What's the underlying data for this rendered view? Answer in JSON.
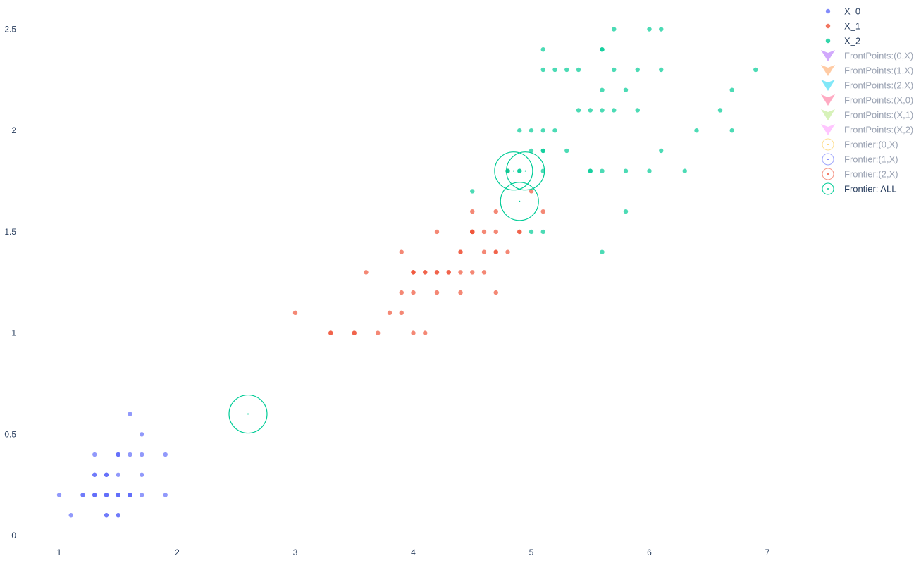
{
  "chart_data": {
    "type": "scatter",
    "title": "",
    "xlabel": "",
    "ylabel": "",
    "xlim": [
      0.6,
      7.6
    ],
    "ylim": [
      -0.05,
      2.6
    ],
    "grid": false,
    "legend_position": "top-right",
    "x_ticks": [
      1,
      2,
      3,
      4,
      5,
      6,
      7
    ],
    "x_tick_labels": [
      "1",
      "2",
      "3",
      "4",
      "5",
      "6",
      "7"
    ],
    "y_ticks": [
      0,
      0.5,
      1,
      1.5,
      2,
      2.5
    ],
    "y_tick_labels": [
      "0",
      "0.5",
      "1",
      "1.5",
      "2",
      "2.5"
    ],
    "series": [
      {
        "name": "X_0",
        "kind": "points",
        "color": "#636efa",
        "points": [
          [
            1.4,
            0.2
          ],
          [
            1.4,
            0.2
          ],
          [
            1.3,
            0.2
          ],
          [
            1.5,
            0.2
          ],
          [
            1.4,
            0.2
          ],
          [
            1.7,
            0.4
          ],
          [
            1.4,
            0.3
          ],
          [
            1.5,
            0.2
          ],
          [
            1.4,
            0.2
          ],
          [
            1.5,
            0.1
          ],
          [
            1.5,
            0.2
          ],
          [
            1.6,
            0.2
          ],
          [
            1.4,
            0.1
          ],
          [
            1.1,
            0.1
          ],
          [
            1.2,
            0.2
          ],
          [
            1.5,
            0.4
          ],
          [
            1.3,
            0.4
          ],
          [
            1.4,
            0.3
          ],
          [
            1.7,
            0.3
          ],
          [
            1.5,
            0.3
          ],
          [
            1.7,
            0.2
          ],
          [
            1.5,
            0.4
          ],
          [
            1.0,
            0.2
          ],
          [
            1.7,
            0.5
          ],
          [
            1.9,
            0.2
          ],
          [
            1.6,
            0.2
          ],
          [
            1.6,
            0.4
          ],
          [
            1.5,
            0.2
          ],
          [
            1.4,
            0.2
          ],
          [
            1.6,
            0.2
          ],
          [
            1.6,
            0.2
          ],
          [
            1.5,
            0.4
          ],
          [
            1.5,
            0.1
          ],
          [
            1.4,
            0.2
          ],
          [
            1.5,
            0.2
          ],
          [
            1.2,
            0.2
          ],
          [
            1.3,
            0.2
          ],
          [
            1.4,
            0.1
          ],
          [
            1.3,
            0.2
          ],
          [
            1.5,
            0.2
          ],
          [
            1.3,
            0.3
          ],
          [
            1.3,
            0.3
          ],
          [
            1.3,
            0.2
          ],
          [
            1.6,
            0.6
          ],
          [
            1.9,
            0.4
          ],
          [
            1.4,
            0.3
          ],
          [
            1.6,
            0.2
          ],
          [
            1.4,
            0.2
          ],
          [
            1.5,
            0.2
          ],
          [
            1.4,
            0.2
          ]
        ]
      },
      {
        "name": "X_1",
        "kind": "points",
        "color": "#ef553b",
        "points": [
          [
            4.7,
            1.4
          ],
          [
            4.5,
            1.5
          ],
          [
            4.9,
            1.5
          ],
          [
            4.0,
            1.3
          ],
          [
            4.6,
            1.5
          ],
          [
            4.5,
            1.3
          ],
          [
            4.7,
            1.6
          ],
          [
            3.3,
            1.0
          ],
          [
            4.6,
            1.3
          ],
          [
            3.9,
            1.4
          ],
          [
            3.5,
            1.0
          ],
          [
            4.2,
            1.5
          ],
          [
            4.0,
            1.0
          ],
          [
            4.7,
            1.4
          ],
          [
            3.6,
            1.3
          ],
          [
            4.4,
            1.4
          ],
          [
            4.5,
            1.5
          ],
          [
            4.1,
            1.0
          ],
          [
            4.5,
            1.5
          ],
          [
            3.9,
            1.1
          ],
          [
            4.8,
            1.8
          ],
          [
            4.0,
            1.3
          ],
          [
            4.9,
            1.5
          ],
          [
            4.7,
            1.2
          ],
          [
            4.3,
            1.3
          ],
          [
            4.4,
            1.4
          ],
          [
            4.8,
            1.4
          ],
          [
            5.0,
            1.7
          ],
          [
            4.5,
            1.5
          ],
          [
            3.5,
            1.0
          ],
          [
            3.8,
            1.1
          ],
          [
            3.7,
            1.0
          ],
          [
            3.9,
            1.2
          ],
          [
            5.1,
            1.6
          ],
          [
            4.5,
            1.5
          ],
          [
            4.5,
            1.6
          ],
          [
            4.7,
            1.5
          ],
          [
            4.4,
            1.3
          ],
          [
            4.1,
            1.3
          ],
          [
            4.0,
            1.3
          ],
          [
            4.4,
            1.2
          ],
          [
            4.6,
            1.4
          ],
          [
            4.0,
            1.2
          ],
          [
            3.3,
            1.0
          ],
          [
            4.2,
            1.3
          ],
          [
            4.2,
            1.2
          ],
          [
            4.2,
            1.3
          ],
          [
            4.3,
            1.3
          ],
          [
            3.0,
            1.1
          ],
          [
            4.1,
            1.3
          ]
        ]
      },
      {
        "name": "X_2",
        "kind": "points",
        "color": "#00cc96",
        "points": [
          [
            6.0,
            2.5
          ],
          [
            5.1,
            1.9
          ],
          [
            5.9,
            2.1
          ],
          [
            5.6,
            1.8
          ],
          [
            5.8,
            2.2
          ],
          [
            6.6,
            2.1
          ],
          [
            4.5,
            1.7
          ],
          [
            6.3,
            1.8
          ],
          [
            5.8,
            1.8
          ],
          [
            6.1,
            2.5
          ],
          [
            5.1,
            2.0
          ],
          [
            5.3,
            1.9
          ],
          [
            5.5,
            2.1
          ],
          [
            5.0,
            2.0
          ],
          [
            5.1,
            2.4
          ],
          [
            5.3,
            2.3
          ],
          [
            5.5,
            1.8
          ],
          [
            6.7,
            2.2
          ],
          [
            6.9,
            2.3
          ],
          [
            5.0,
            1.5
          ],
          [
            5.7,
            2.3
          ],
          [
            4.9,
            2.0
          ],
          [
            6.7,
            2.0
          ],
          [
            4.9,
            1.8
          ],
          [
            5.7,
            2.1
          ],
          [
            6.0,
            1.8
          ],
          [
            4.8,
            1.8
          ],
          [
            4.9,
            1.8
          ],
          [
            5.6,
            2.1
          ],
          [
            5.8,
            1.6
          ],
          [
            6.1,
            1.9
          ],
          [
            6.4,
            2.0
          ],
          [
            5.6,
            2.2
          ],
          [
            5.1,
            1.5
          ],
          [
            5.6,
            1.4
          ],
          [
            6.1,
            2.3
          ],
          [
            5.6,
            2.4
          ],
          [
            5.5,
            1.8
          ],
          [
            4.8,
            1.8
          ],
          [
            5.4,
            2.1
          ],
          [
            5.6,
            2.4
          ],
          [
            5.1,
            2.3
          ],
          [
            5.1,
            1.9
          ],
          [
            5.9,
            2.3
          ],
          [
            5.7,
            2.5
          ],
          [
            5.2,
            2.3
          ],
          [
            5.0,
            1.9
          ],
          [
            5.2,
            2.0
          ],
          [
            5.4,
            2.3
          ],
          [
            5.1,
            1.8
          ]
        ]
      },
      {
        "name": "FrontPoints:(0,X)",
        "kind": "front",
        "color": "#ab63fa",
        "points": []
      },
      {
        "name": "FrontPoints:(1,X)",
        "kind": "front",
        "color": "#ffa15a",
        "points": []
      },
      {
        "name": "FrontPoints:(2,X)",
        "kind": "front",
        "color": "#19d3f3",
        "points": []
      },
      {
        "name": "FrontPoints:(X,0)",
        "kind": "front",
        "color": "#ff6692",
        "points": []
      },
      {
        "name": "FrontPoints:(X,1)",
        "kind": "front",
        "color": "#b6e880",
        "points": []
      },
      {
        "name": "FrontPoints:(X,2)",
        "kind": "front",
        "color": "#ff97ff",
        "points": []
      },
      {
        "name": "Frontier:(0,X)",
        "kind": "frontier",
        "color": "#fecb52",
        "points": []
      },
      {
        "name": "Frontier:(1,X)",
        "kind": "frontier",
        "color": "#636efa",
        "points": []
      },
      {
        "name": "Frontier:(2,X)",
        "kind": "frontier",
        "color": "#ef553b",
        "points": []
      },
      {
        "name": "Frontier: ALL",
        "kind": "frontier",
        "color": "#00cc96",
        "points": [
          [
            2.6,
            0.6
          ],
          [
            4.85,
            1.8
          ],
          [
            4.95,
            1.8
          ],
          [
            4.9,
            1.65
          ]
        ]
      }
    ]
  }
}
